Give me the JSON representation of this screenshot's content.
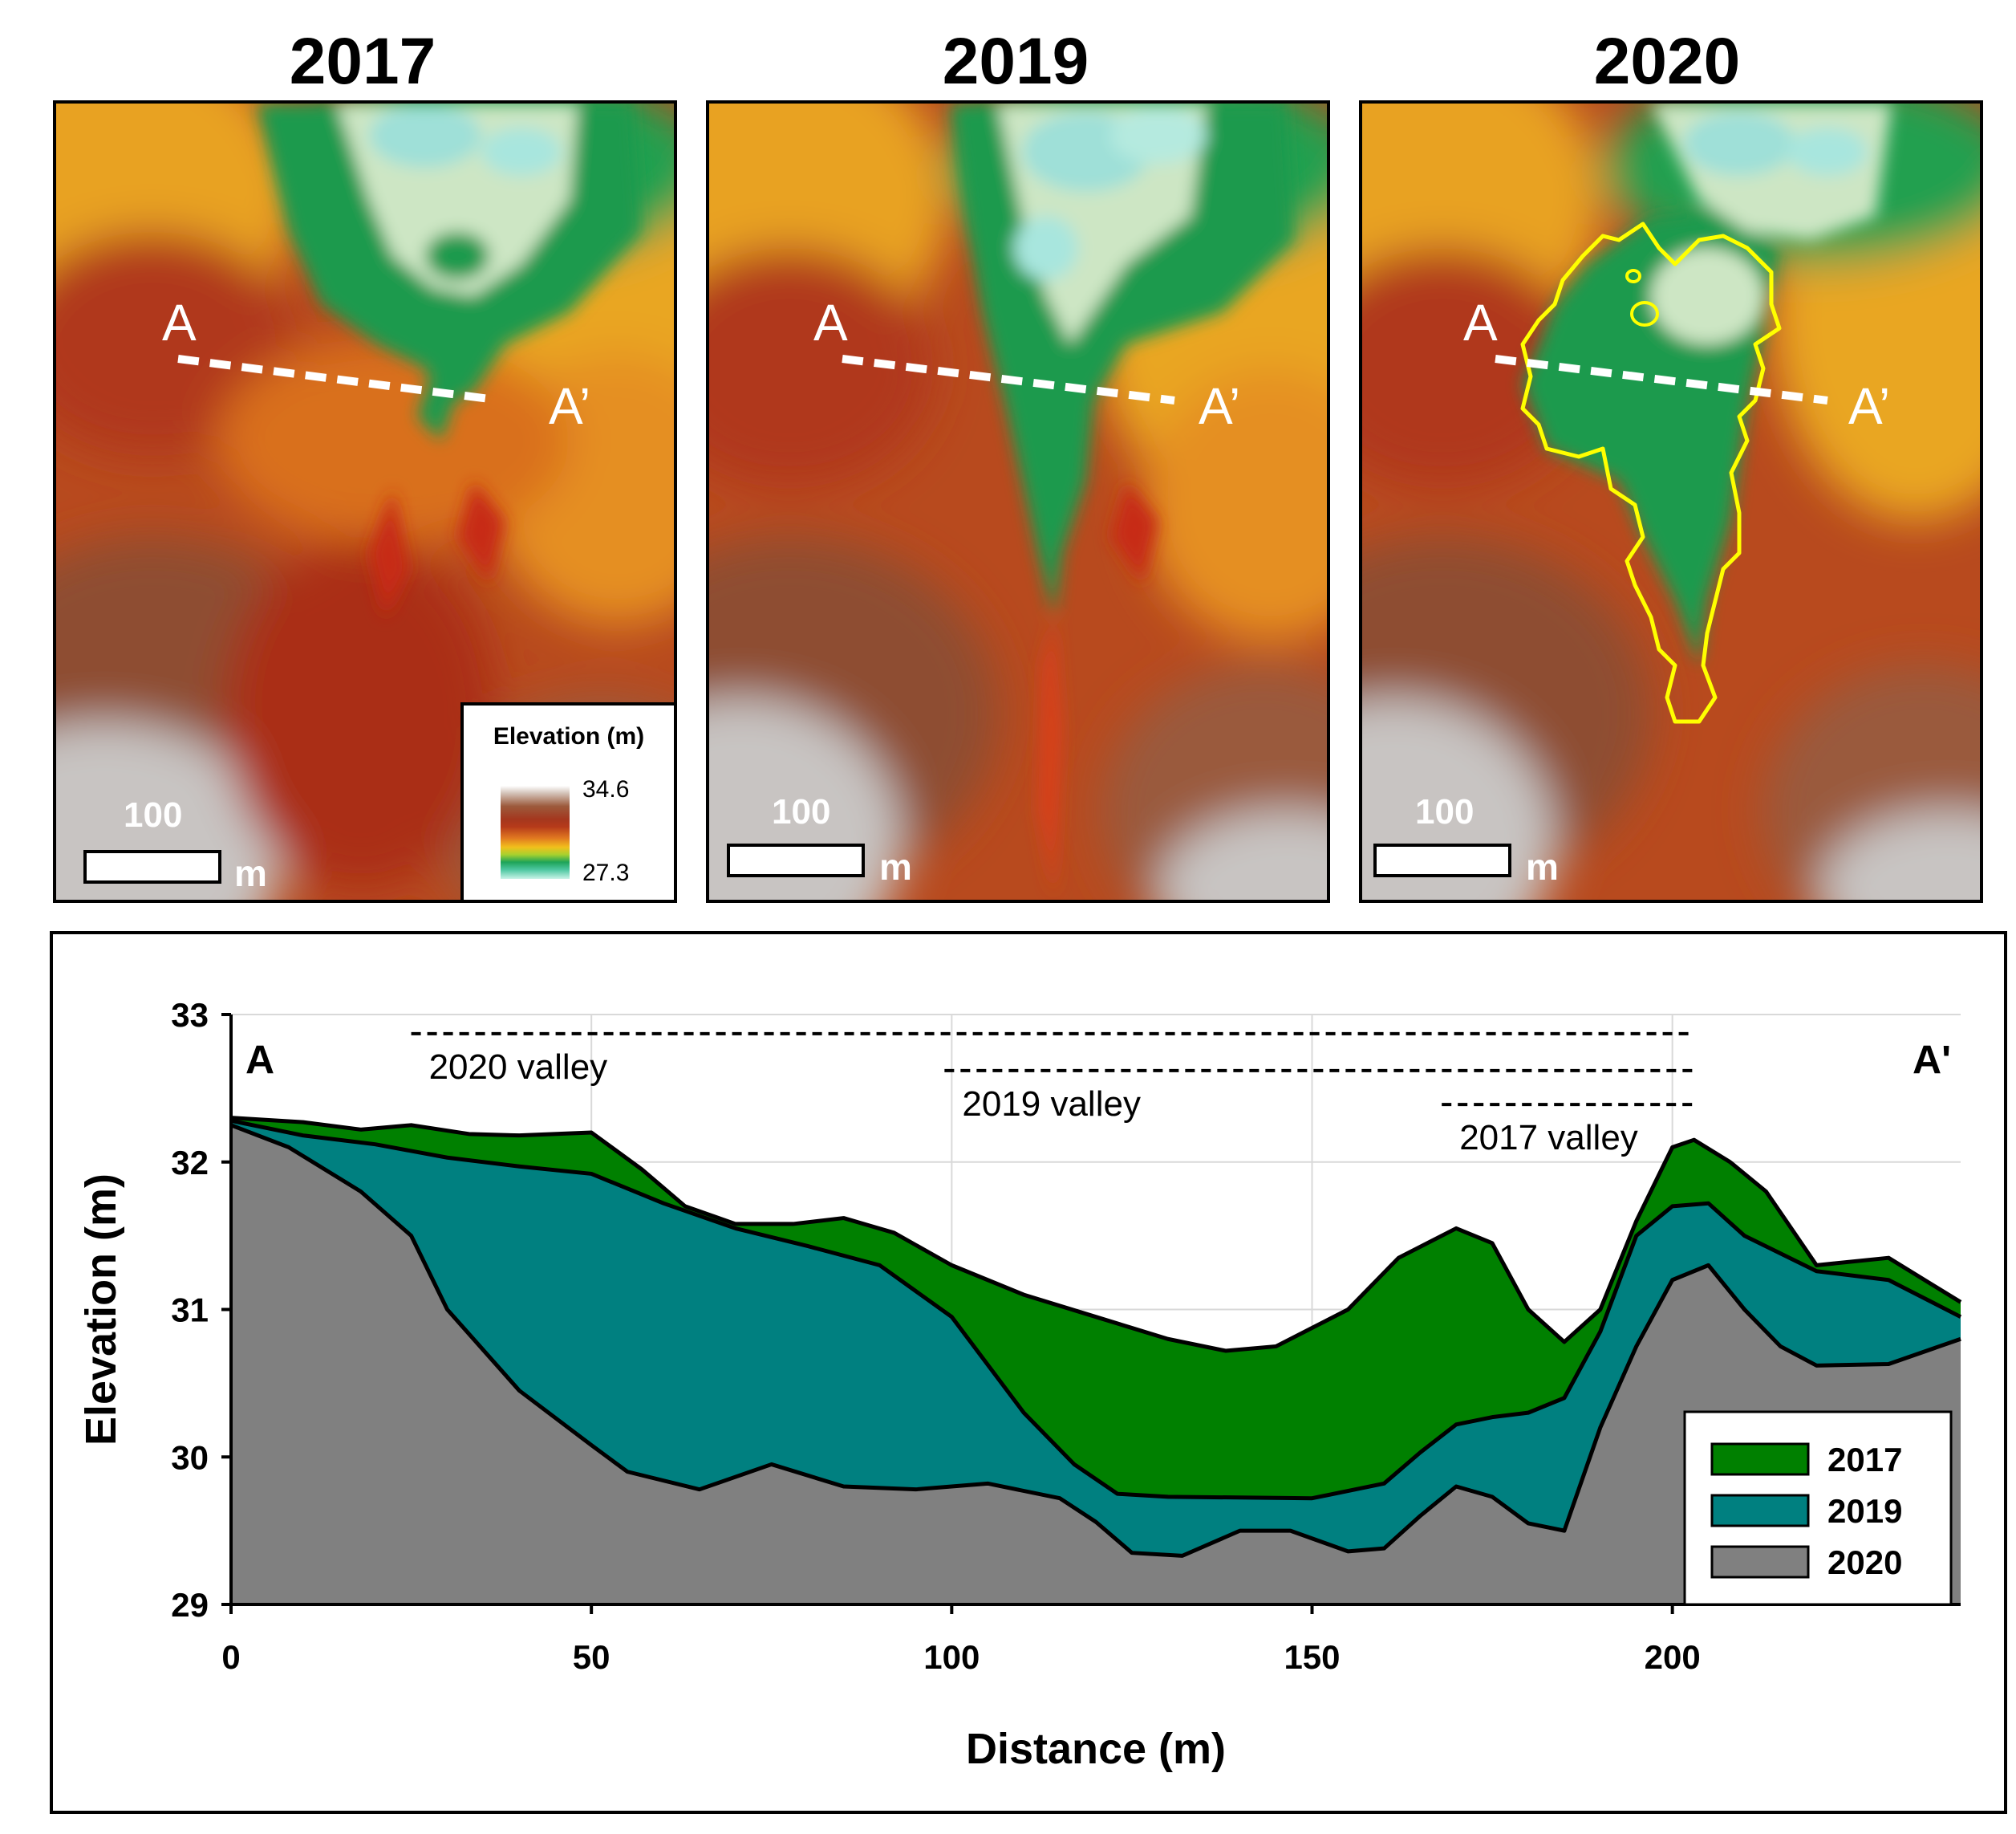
{
  "maps": {
    "titles": [
      "2017",
      "2019",
      "2020"
    ],
    "section_start": "A",
    "section_end": "A’",
    "scale_value": "100",
    "scale_unit": "m",
    "outline_color": "#ffff00",
    "legend": {
      "title": "Elevation (m)",
      "max": "34.6",
      "min": "27.3"
    }
  },
  "chart_data": {
    "type": "area",
    "title": "",
    "xlabel": "Distance (m)",
    "ylabel": "Elevation (m)",
    "xlim": [
      0,
      240
    ],
    "ylim": [
      29,
      33
    ],
    "xticks": [
      "0",
      "50",
      "100",
      "150",
      "200"
    ],
    "yticks": [
      "29",
      "30",
      "31",
      "32",
      "33"
    ],
    "grid": true,
    "legend_position": "bottom-right",
    "section_labels": {
      "start": "A",
      "end": "A'"
    },
    "series": [
      {
        "name": "2017",
        "color": "#008000",
        "x": [
          0,
          10,
          18,
          25,
          33,
          40,
          50,
          57,
          63,
          70,
          78,
          85,
          92,
          100,
          110,
          120,
          130,
          138,
          145,
          155,
          162,
          170,
          175,
          180,
          185,
          190,
          195,
          200,
          203,
          208,
          213,
          220,
          230,
          240
        ],
        "values": [
          32.3,
          32.27,
          32.22,
          32.25,
          32.19,
          32.18,
          32.2,
          31.95,
          31.7,
          31.58,
          31.58,
          31.62,
          31.52,
          31.3,
          31.1,
          30.95,
          30.8,
          30.72,
          30.75,
          31.0,
          31.35,
          31.55,
          31.45,
          31.0,
          30.78,
          31.0,
          31.6,
          32.1,
          32.15,
          32.0,
          31.8,
          31.3,
          31.35,
          31.05
        ]
      },
      {
        "name": "2019",
        "color": "#008080",
        "x": [
          0,
          10,
          20,
          30,
          40,
          50,
          60,
          70,
          80,
          90,
          100,
          110,
          117,
          123,
          130,
          150,
          160,
          165,
          170,
          175,
          180,
          185,
          190,
          195,
          200,
          205,
          210,
          220,
          230,
          240
        ],
        "values": [
          32.28,
          32.18,
          32.12,
          32.03,
          31.97,
          31.92,
          31.72,
          31.55,
          31.43,
          31.3,
          30.95,
          30.3,
          29.95,
          29.75,
          29.73,
          29.72,
          29.82,
          30.03,
          30.22,
          30.27,
          30.3,
          30.4,
          30.85,
          31.5,
          31.7,
          31.72,
          31.5,
          31.26,
          31.2,
          30.95
        ]
      },
      {
        "name": "2020",
        "color": "#808080",
        "x": [
          0,
          8,
          18,
          25,
          30,
          40,
          50,
          55,
          65,
          75,
          85,
          95,
          105,
          115,
          120,
          125,
          132,
          140,
          147,
          155,
          160,
          165,
          170,
          175,
          180,
          185,
          190,
          195,
          200,
          205,
          210,
          215,
          220,
          230,
          240
        ],
        "values": [
          32.25,
          32.1,
          31.8,
          31.5,
          31.0,
          30.45,
          30.08,
          29.9,
          29.78,
          29.95,
          29.8,
          29.78,
          29.82,
          29.72,
          29.56,
          29.35,
          29.33,
          29.5,
          29.5,
          29.36,
          29.38,
          29.6,
          29.8,
          29.73,
          29.55,
          29.5,
          30.2,
          30.75,
          31.2,
          31.3,
          31.0,
          30.75,
          30.62,
          30.63,
          30.8
        ]
      }
    ],
    "annotations": [
      {
        "text": "2020 valley",
        "x_start": 25,
        "x_end": 203,
        "y": 32.87
      },
      {
        "text": "2019 valley",
        "x_start": 99,
        "x_end": 203,
        "y": 32.62
      },
      {
        "text": "2017 valley",
        "x_start": 168,
        "x_end": 203,
        "y": 32.39
      }
    ]
  }
}
